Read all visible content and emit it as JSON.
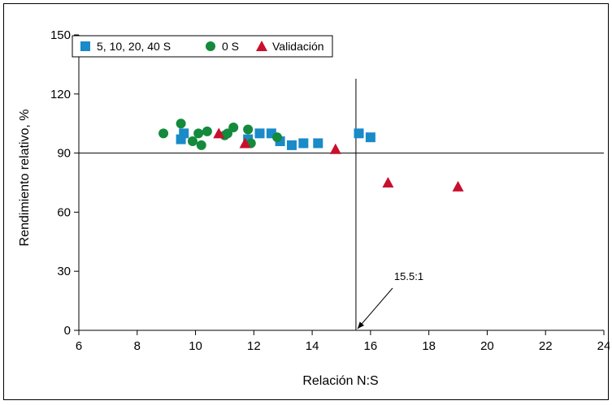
{
  "chart_data": {
    "type": "scatter",
    "xlabel": "Relación N:S",
    "ylabel": "Rendimiento relativo, %",
    "xlim": [
      6,
      24
    ],
    "ylim": [
      0,
      150
    ],
    "xticks": [
      6,
      8,
      10,
      12,
      14,
      16,
      18,
      20,
      22,
      24
    ],
    "yticks": [
      0,
      30,
      60,
      90,
      120,
      150
    ],
    "x_tick_labels": [
      "6",
      "8",
      "10",
      "12",
      "14",
      "16",
      "18",
      "20",
      "22",
      "24"
    ],
    "y_tick_labels": [
      "0",
      "30",
      "60",
      "90",
      "120",
      "150"
    ],
    "legend_position": "top-left",
    "grid": false,
    "series": [
      {
        "name": "5, 10, 20, 40 S",
        "marker": "square",
        "color": "#1a8ac8",
        "points": [
          [
            9.5,
            97
          ],
          [
            9.6,
            100
          ],
          [
            11.8,
            97
          ],
          [
            12.2,
            100
          ],
          [
            12.6,
            100
          ],
          [
            12.9,
            96
          ],
          [
            13.3,
            94
          ],
          [
            13.7,
            95
          ],
          [
            14.2,
            95
          ],
          [
            15.6,
            100
          ],
          [
            16.0,
            98
          ]
        ]
      },
      {
        "name": "0 S",
        "marker": "circle",
        "color": "#138a3c",
        "points": [
          [
            8.9,
            100
          ],
          [
            9.5,
            105
          ],
          [
            9.9,
            96
          ],
          [
            10.1,
            100
          ],
          [
            10.2,
            94
          ],
          [
            10.4,
            101
          ],
          [
            11.0,
            99
          ],
          [
            11.1,
            100
          ],
          [
            11.3,
            103
          ],
          [
            11.8,
            102
          ],
          [
            11.9,
            95
          ],
          [
            12.8,
            98
          ]
        ]
      },
      {
        "name": "Validación",
        "marker": "triangle",
        "color": "#c8102e",
        "points": [
          [
            10.8,
            100
          ],
          [
            11.7,
            95
          ],
          [
            14.8,
            92
          ],
          [
            16.6,
            75
          ],
          [
            19.0,
            73
          ]
        ]
      }
    ],
    "reference_lines": {
      "horizontal_y": 90,
      "vertical_x": 15.5
    },
    "annotation": {
      "text": "15.5:1",
      "x": 15.5,
      "y": 0
    }
  }
}
